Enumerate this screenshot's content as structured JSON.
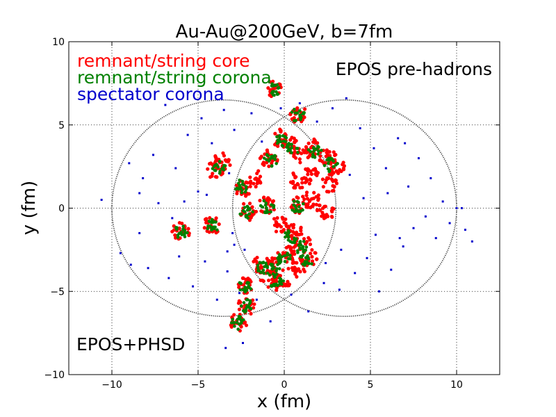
{
  "chart_data": {
    "type": "scatter",
    "title": "Au-Au@200GeV, b=7fm",
    "xlabel": "x (fm)",
    "ylabel": "y (fm)",
    "xlim": [
      -12.5,
      12.5
    ],
    "ylim": [
      -10,
      10
    ],
    "xticks": [
      -10,
      -5,
      0,
      5,
      10
    ],
    "yticks": [
      -10,
      -5,
      0,
      5,
      10
    ],
    "xtick_labels": [
      "−10",
      "−5",
      "0",
      "5",
      "10"
    ],
    "ytick_labels": [
      "−10",
      "−5",
      "0",
      "5",
      "10"
    ],
    "grid": true,
    "grid_style": "dotted",
    "legend_placement": "top-left",
    "annotations": [
      "EPOS pre-hadrons",
      "EPOS+PHSD"
    ],
    "nuclei_outlines": [
      {
        "center": [
          -3.5,
          0
        ],
        "radius": 6.5,
        "color": "#333333"
      },
      {
        "center": [
          3.5,
          0
        ],
        "radius": 6.5,
        "color": "#333333"
      }
    ],
    "series": [
      {
        "name": "remnant/string core",
        "color": "#ff0000",
        "clusters": [
          [
            -0.7,
            7.2
          ],
          [
            0.8,
            5.6
          ],
          [
            -0.3,
            4.2
          ],
          [
            0.4,
            3.8
          ],
          [
            1.0,
            3.2
          ],
          [
            -0.9,
            3.0
          ],
          [
            1.7,
            3.6
          ],
          [
            2.5,
            3.0
          ],
          [
            3.0,
            2.5
          ],
          [
            1.5,
            2.0
          ],
          [
            -1.8,
            1.8
          ],
          [
            0.8,
            1.7
          ],
          [
            2.6,
            1.5
          ],
          [
            -4.0,
            2.3
          ],
          [
            -3.6,
            2.8
          ],
          [
            -2.4,
            1.2
          ],
          [
            -1.0,
            0.2
          ],
          [
            0.9,
            0.2
          ],
          [
            1.6,
            0.5
          ],
          [
            -2.1,
            -0.2
          ],
          [
            -4.2,
            -1.0
          ],
          [
            -0.2,
            -1.0
          ],
          [
            0.6,
            -1.5
          ],
          [
            1.0,
            -2.1
          ],
          [
            0.1,
            -2.8
          ],
          [
            1.4,
            -3.0
          ],
          [
            -0.5,
            -3.5
          ],
          [
            -1.3,
            -3.4
          ],
          [
            0.7,
            -3.6
          ],
          [
            -0.9,
            -4.2
          ],
          [
            -0.2,
            -4.5
          ],
          [
            -2.2,
            -4.6
          ],
          [
            -2.2,
            -5.9
          ],
          [
            -2.7,
            -6.9
          ],
          [
            -6.0,
            -1.4
          ],
          [
            2.4,
            -0.2
          ]
        ]
      },
      {
        "name": "remnant/string corona",
        "color": "#008000",
        "clusters": [
          [
            -0.6,
            7.1
          ],
          [
            0.8,
            5.6
          ],
          [
            -0.2,
            4.1
          ],
          [
            0.5,
            3.6
          ],
          [
            -0.8,
            2.9
          ],
          [
            1.8,
            3.4
          ],
          [
            2.7,
            2.6
          ],
          [
            -3.8,
            2.5
          ],
          [
            -2.5,
            1.3
          ],
          [
            -1.0,
            0.1
          ],
          [
            0.8,
            0.1
          ],
          [
            -2.2,
            -0.3
          ],
          [
            -4.2,
            -1.1
          ],
          [
            0.4,
            -1.7
          ],
          [
            0.9,
            -2.3
          ],
          [
            0.0,
            -3.0
          ],
          [
            1.3,
            -3.1
          ],
          [
            -0.6,
            -3.7
          ],
          [
            -1.2,
            -3.6
          ],
          [
            -0.4,
            -4.5
          ],
          [
            -2.3,
            -4.7
          ],
          [
            -2.2,
            -5.9
          ],
          [
            -2.7,
            -6.9
          ],
          [
            -6.0,
            -1.4
          ]
        ]
      },
      {
        "name": "spectator corona",
        "color": "#0000cc",
        "points": [
          [
            -10.6,
            0.5
          ],
          [
            -9.5,
            -2.7
          ],
          [
            -8.9,
            -3.4
          ],
          [
            -9.0,
            2.7
          ],
          [
            -8.2,
            1.8
          ],
          [
            -8.4,
            -1.5
          ],
          [
            -7.6,
            3.2
          ],
          [
            -7.3,
            0.3
          ],
          [
            -6.9,
            6.2
          ],
          [
            -6.7,
            -4.2
          ],
          [
            -6.3,
            2.4
          ],
          [
            -6.1,
            -2.9
          ],
          [
            -5.6,
            4.4
          ],
          [
            -5.3,
            -4.7
          ],
          [
            -5.0,
            1.0
          ],
          [
            -4.8,
            5.4
          ],
          [
            -4.6,
            -3.2
          ],
          [
            -4.2,
            3.9
          ],
          [
            -3.9,
            -5.5
          ],
          [
            -3.5,
            5.9
          ],
          [
            -3.3,
            -3.8
          ],
          [
            -2.9,
            4.7
          ],
          [
            -2.6,
            -5.1
          ],
          [
            -1.9,
            5.7
          ],
          [
            -1.6,
            -5.5
          ],
          [
            -1.3,
            4.0
          ],
          [
            -0.8,
            -6.8
          ],
          [
            -0.2,
            6.0
          ],
          [
            0.4,
            -5.2
          ],
          [
            0.9,
            6.3
          ],
          [
            1.4,
            -6.2
          ],
          [
            1.9,
            5.2
          ],
          [
            2.3,
            -4.5
          ],
          [
            2.8,
            6.0
          ],
          [
            3.2,
            -4.9
          ],
          [
            3.6,
            6.6
          ],
          [
            4.1,
            -3.9
          ],
          [
            4.4,
            4.8
          ],
          [
            4.8,
            -3.0
          ],
          [
            5.2,
            3.6
          ],
          [
            5.5,
            -5.0
          ],
          [
            5.9,
            2.4
          ],
          [
            6.2,
            -3.7
          ],
          [
            6.6,
            4.2
          ],
          [
            6.9,
            -2.3
          ],
          [
            7.2,
            1.3
          ],
          [
            7.5,
            -1.2
          ],
          [
            7.8,
            3.0
          ],
          [
            8.2,
            -0.5
          ],
          [
            8.5,
            1.8
          ],
          [
            8.8,
            -1.8
          ],
          [
            9.2,
            0.4
          ],
          [
            9.6,
            -0.9
          ],
          [
            10.0,
            0.0
          ],
          [
            10.3,
            0.0
          ],
          [
            10.9,
            -2.0
          ],
          [
            10.5,
            -1.3
          ],
          [
            3.8,
            2.0
          ],
          [
            4.6,
            0.6
          ],
          [
            5.3,
            -1.6
          ],
          [
            6.0,
            0.9
          ],
          [
            3.3,
            -2.5
          ],
          [
            -6.5,
            -0.6
          ],
          [
            -7.9,
            -3.6
          ],
          [
            -5.8,
            0.4
          ],
          [
            -4.5,
            0.8
          ],
          [
            -2.9,
            -2.2
          ],
          [
            -3.0,
            -1.5
          ],
          [
            2.4,
            -3.3
          ],
          [
            6.7,
            -1.8
          ],
          [
            7.0,
            3.9
          ],
          [
            -8.4,
            0.9
          ],
          [
            -2.4,
            -8.1
          ],
          [
            -3.4,
            -8.4
          ],
          [
            -3.3,
            -2.6
          ],
          [
            -2.3,
            -2.5
          ],
          [
            -3.2,
            2.1
          ]
        ]
      }
    ]
  }
}
